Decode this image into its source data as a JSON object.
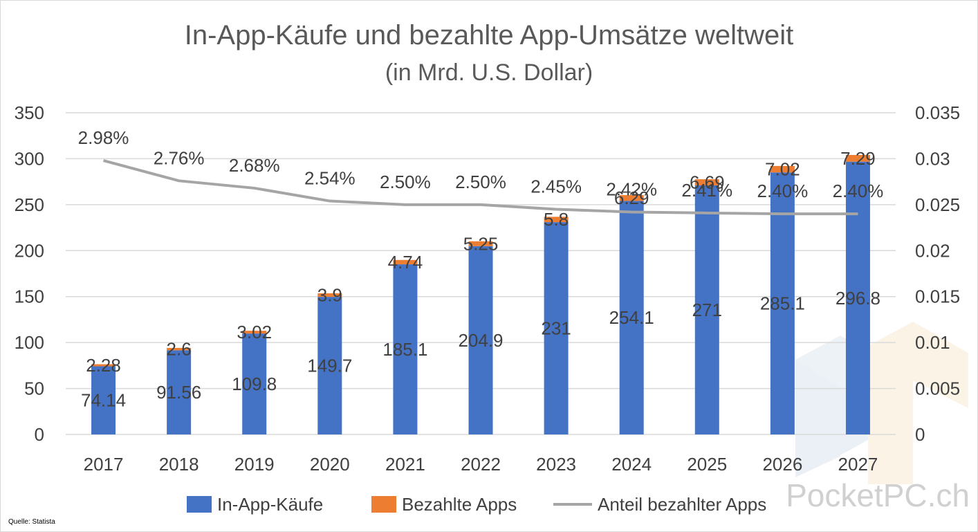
{
  "chart_data": {
    "type": "bar",
    "stacked": true,
    "title": "In-App-Käufe und bezahlte App-Umsätze weltweit",
    "subtitle": "(in Mrd. U.S. Dollar)",
    "categories": [
      "2017",
      "2018",
      "2019",
      "2020",
      "2021",
      "2022",
      "2023",
      "2024",
      "2025",
      "2026",
      "2027"
    ],
    "series": [
      {
        "name": "In-App-Käufe",
        "type": "bar",
        "axis": "left",
        "color": "#4472c4",
        "values": [
          74.14,
          91.56,
          109.8,
          149.7,
          185.1,
          204.9,
          231,
          254.1,
          271,
          285.1,
          296.8
        ],
        "labels": [
          "74.14",
          "91.56",
          "109.8",
          "149.7",
          "185.1",
          "204.9",
          "231",
          "254.1",
          "271",
          "285.1",
          "296.8"
        ]
      },
      {
        "name": "Bezahlte Apps",
        "type": "bar",
        "axis": "left",
        "color": "#ed7d31",
        "values": [
          2.28,
          2.6,
          3.02,
          3.9,
          4.74,
          5.25,
          5.8,
          6.29,
          6.69,
          7.02,
          7.29
        ],
        "labels": [
          "2.28",
          "2.6",
          "3.02",
          "3.9",
          "4.74",
          "5.25",
          "5.8",
          "6.29",
          "6.69",
          "7.02",
          "7.29"
        ]
      },
      {
        "name": "Anteil bezahlter Apps",
        "type": "line",
        "axis": "right",
        "color": "#a5a5a5",
        "values": [
          0.0298,
          0.0276,
          0.0268,
          0.0254,
          0.025,
          0.025,
          0.0245,
          0.0242,
          0.0241,
          0.024,
          0.024
        ],
        "labels": [
          "2.98%",
          "2.76%",
          "2.68%",
          "2.54%",
          "2.50%",
          "2.50%",
          "2.45%",
          "2.42%",
          "2.41%",
          "2.40%",
          "2.40%"
        ]
      }
    ],
    "y_left": {
      "min": 0,
      "max": 350,
      "ticks": [
        "0",
        "50",
        "100",
        "150",
        "200",
        "250",
        "300",
        "350"
      ]
    },
    "y_right": {
      "min": 0,
      "max": 0.035,
      "ticks": [
        "0",
        "0.005",
        "0.01",
        "0.015",
        "0.02",
        "0.025",
        "0.03",
        "0.035"
      ]
    },
    "grid": true,
    "legend": "bottom"
  },
  "source": "Quelle: Statista",
  "watermark": "PocketPC.ch"
}
